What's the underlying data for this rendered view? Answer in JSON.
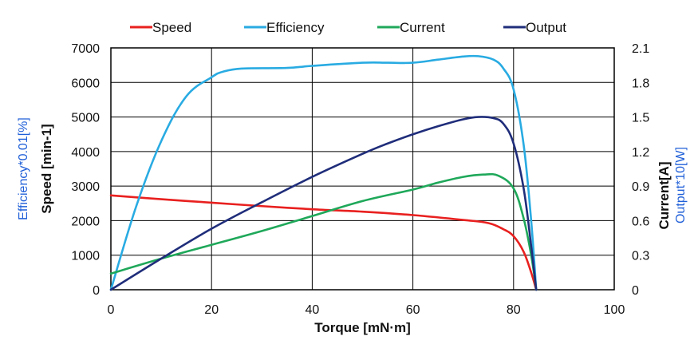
{
  "chart_data": {
    "type": "line",
    "xlabel": "Torque [mN·m]",
    "ylabel_left_primary": "Speed [min-1]",
    "ylabel_left_secondary": "Efficiency*0.01[%]",
    "ylabel_right_primary": "Current[A]",
    "ylabel_right_secondary": "Output*10[W]",
    "xlim": [
      0,
      100
    ],
    "ylim_left": [
      0,
      7000
    ],
    "ylim_right": [
      0,
      2.1
    ],
    "x_ticks": [
      "0",
      "20",
      "40",
      "60",
      "80",
      "100"
    ],
    "y_left_ticks": [
      "0",
      "1000",
      "2000",
      "3000",
      "4000",
      "5000",
      "6000",
      "7000"
    ],
    "y_right_ticks": [
      "0",
      "0.3",
      "0.6",
      "0.9",
      "1.2",
      "1.5",
      "1.8",
      "2.1"
    ],
    "grid": true,
    "legend_position": "top",
    "series": [
      {
        "name": "Speed",
        "axis": "left",
        "color": "#e8201f",
        "points": [
          [
            0,
            2730
          ],
          [
            10,
            2620
          ],
          [
            20,
            2520
          ],
          [
            30,
            2420
          ],
          [
            40,
            2330
          ],
          [
            50,
            2260
          ],
          [
            60,
            2160
          ],
          [
            70,
            2020
          ],
          [
            75,
            1930
          ],
          [
            78,
            1750
          ],
          [
            80,
            1550
          ],
          [
            82,
            1100
          ],
          [
            83.5,
            500
          ],
          [
            84.5,
            0
          ]
        ]
      },
      {
        "name": "Efficiency",
        "axis": "left",
        "color": "#29abe2",
        "points": [
          [
            0,
            0
          ],
          [
            5,
            2400
          ],
          [
            10,
            4300
          ],
          [
            15,
            5600
          ],
          [
            20,
            6150
          ],
          [
            22,
            6300
          ],
          [
            25,
            6390
          ],
          [
            28,
            6410
          ],
          [
            35,
            6420
          ],
          [
            40,
            6480
          ],
          [
            50,
            6570
          ],
          [
            55,
            6570
          ],
          [
            60,
            6570
          ],
          [
            65,
            6660
          ],
          [
            70,
            6750
          ],
          [
            73,
            6760
          ],
          [
            76,
            6660
          ],
          [
            78,
            6400
          ],
          [
            80,
            5800
          ],
          [
            82,
            4200
          ],
          [
            83.5,
            2000
          ],
          [
            84.5,
            0
          ]
        ]
      },
      {
        "name": "Current",
        "axis": "right",
        "color": "#1fa85a",
        "points": [
          [
            0,
            0.14
          ],
          [
            10,
            0.27
          ],
          [
            20,
            0.39
          ],
          [
            30,
            0.51
          ],
          [
            40,
            0.64
          ],
          [
            50,
            0.77
          ],
          [
            60,
            0.87
          ],
          [
            65,
            0.93
          ],
          [
            70,
            0.98
          ],
          [
            74,
            1.0
          ],
          [
            77,
            0.99
          ],
          [
            80,
            0.88
          ],
          [
            82,
            0.62
          ],
          [
            83.5,
            0.3
          ],
          [
            84.5,
            0
          ]
        ]
      },
      {
        "name": "Output",
        "axis": "right",
        "color": "#1f2d7a",
        "points": [
          [
            0,
            0
          ],
          [
            10,
            0.27
          ],
          [
            20,
            0.53
          ],
          [
            30,
            0.76
          ],
          [
            40,
            0.98
          ],
          [
            50,
            1.18
          ],
          [
            55,
            1.27
          ],
          [
            60,
            1.35
          ],
          [
            65,
            1.42
          ],
          [
            70,
            1.48
          ],
          [
            73,
            1.5
          ],
          [
            76,
            1.49
          ],
          [
            78,
            1.44
          ],
          [
            80,
            1.27
          ],
          [
            82,
            0.88
          ],
          [
            83.5,
            0.38
          ],
          [
            84.5,
            0
          ]
        ]
      }
    ]
  }
}
